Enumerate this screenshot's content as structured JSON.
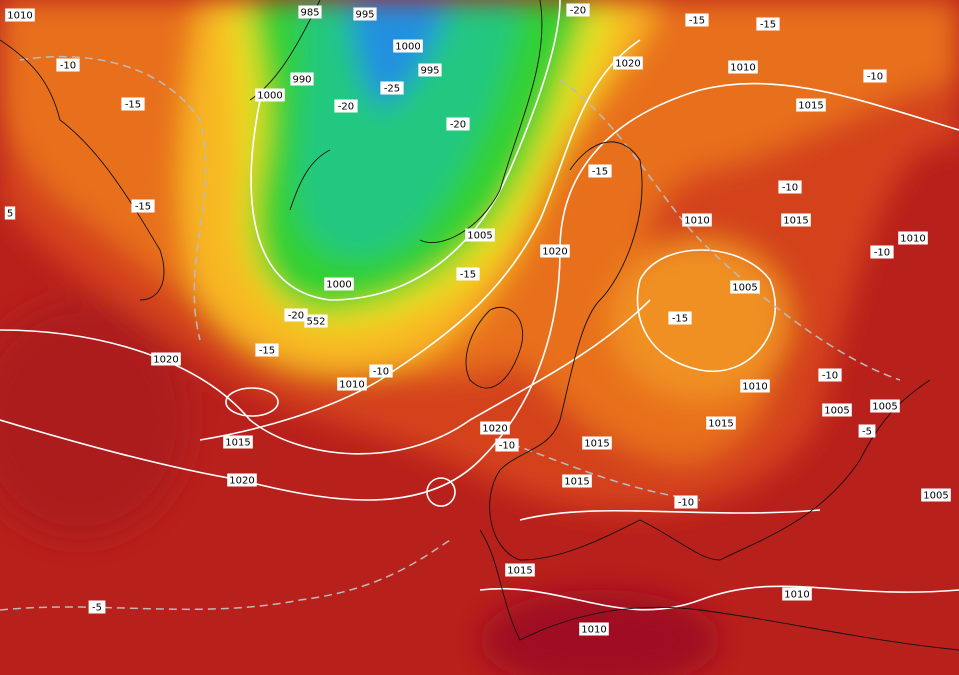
{
  "map": {
    "labels": [
      "1010",
      "985",
      "995",
      "-20",
      "-15",
      "-15",
      "1000",
      "990",
      "995",
      "1020",
      "1010",
      "-10",
      "-10",
      "1000",
      "-25",
      "-15",
      "-20",
      "-20",
      "1015",
      "-15",
      "-10",
      "-15",
      "1015",
      "1010",
      "5",
      "1005",
      "1020",
      "1010",
      "-10",
      "-15",
      "1005",
      "1000",
      "-20",
      "552",
      "-15",
      "-15",
      "1020",
      "-10",
      "1010",
      "1010",
      "-10",
      "1005",
      "1005",
      "1015",
      "1020",
      "-10",
      "1015",
      "-5",
      "1015",
      "1020",
      "1015",
      "-10",
      "1005",
      "1015",
      "1010",
      "-5",
      "1010"
    ]
  }
}
